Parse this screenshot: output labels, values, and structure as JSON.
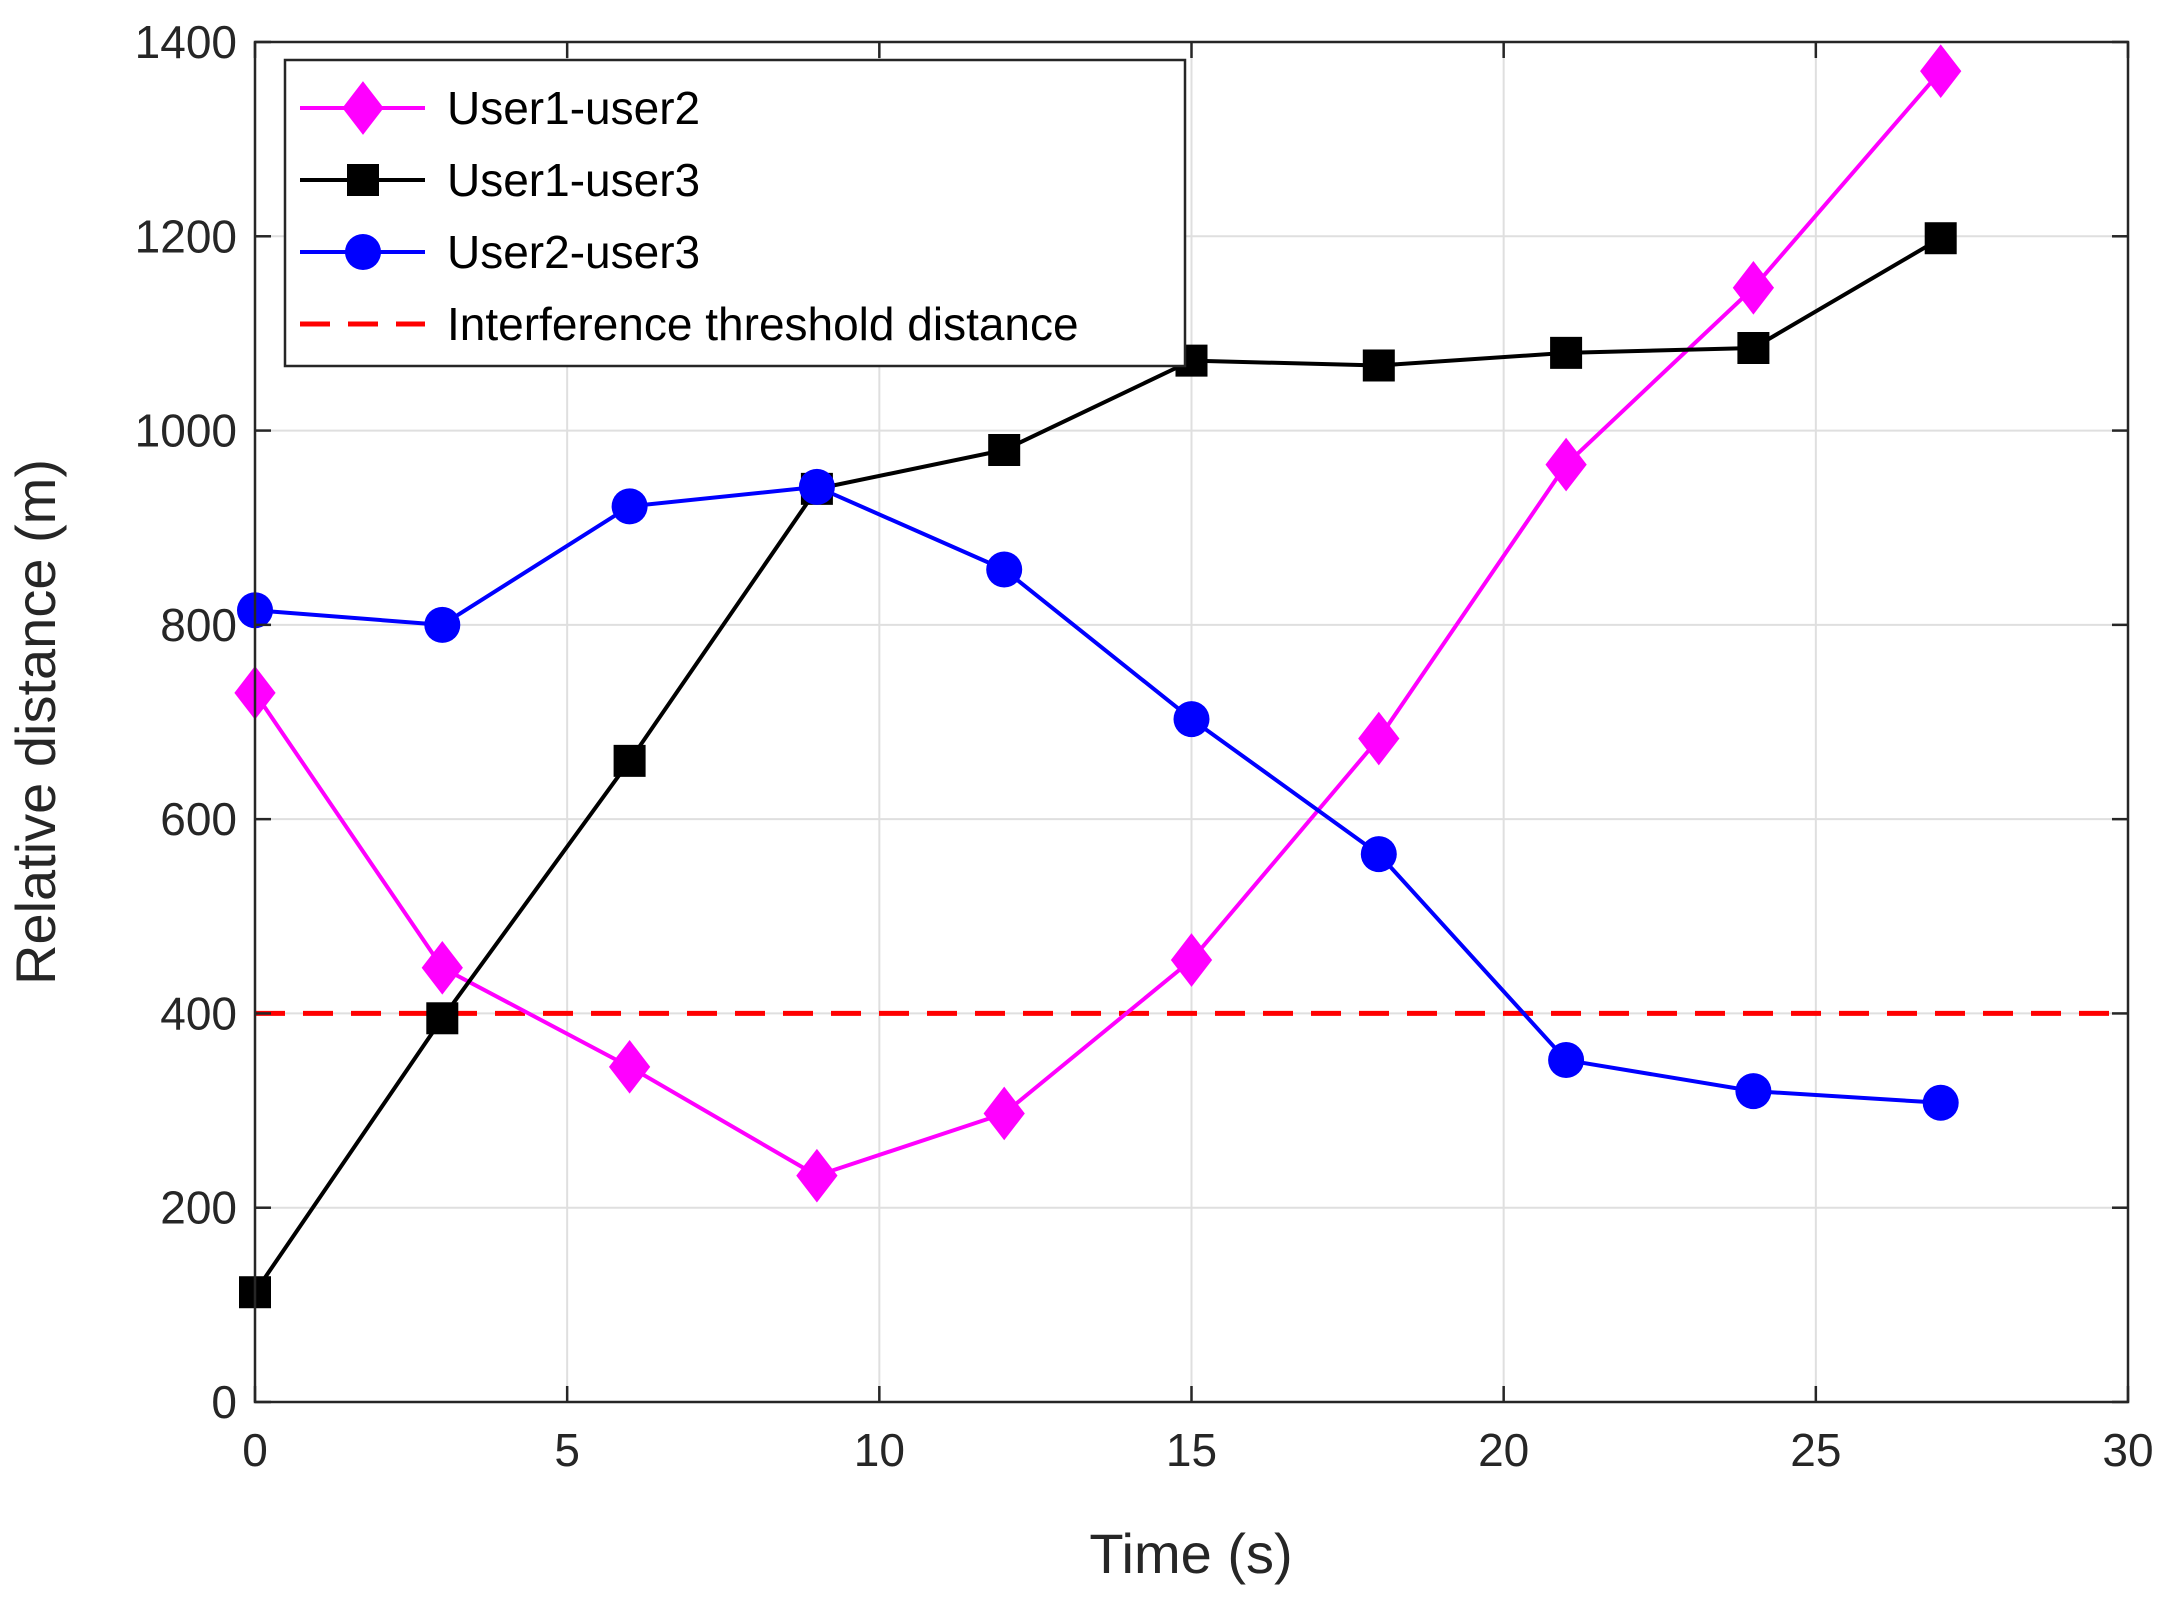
{
  "chart_data": {
    "type": "line",
    "title": "",
    "xlabel": "Time (s)",
    "ylabel": "Relative distance (m)",
    "xlim": [
      0,
      30
    ],
    "ylim": [
      0,
      1400
    ],
    "xticks": [
      0,
      5,
      10,
      15,
      20,
      25,
      30
    ],
    "yticks": [
      0,
      200,
      400,
      600,
      800,
      1000,
      1200,
      1400
    ],
    "grid": true,
    "legend_position": "top-left",
    "x": [
      0,
      3,
      6,
      9,
      12,
      15,
      18,
      21,
      24,
      27
    ],
    "series": [
      {
        "name": "User1-user2",
        "color": "#ff00ff",
        "marker": "diamond",
        "values": [
          730,
          447,
          345,
          233,
          297,
          455,
          683,
          965,
          1147,
          1370
        ]
      },
      {
        "name": "User1-user3",
        "color": "#000000",
        "marker": "square",
        "values": [
          113,
          395,
          660,
          940,
          980,
          1072,
          1067,
          1080,
          1085,
          1198
        ]
      },
      {
        "name": "User2-user3",
        "color": "#0000ff",
        "marker": "circle",
        "values": [
          815,
          800,
          922,
          942,
          857,
          703,
          564,
          352,
          320,
          308
        ]
      }
    ],
    "reference_lines": [
      {
        "name": "Interference threshold distance",
        "color": "#ff0000",
        "style": "dashed",
        "y": 400
      }
    ]
  }
}
